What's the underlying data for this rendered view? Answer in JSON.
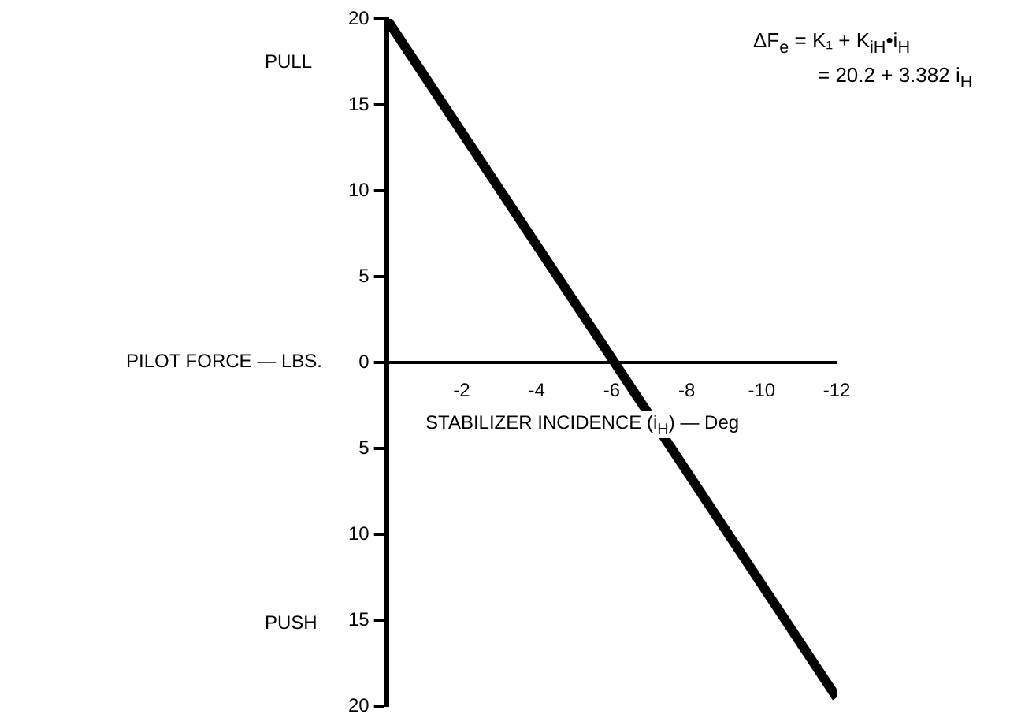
{
  "chart_data": {
    "type": "line",
    "xlabel": "STABILIZER INCIDENCE (i$_{H}$) — Deg",
    "ylabel": "PILOT FORCE — LBS.",
    "annotations": [
      "PULL",
      "PUSH",
      "ΔF$_{e}$ = K₁ + K$_{iH}$•i$_{H}$",
      "= 20.2 + 3.382 i$_{H}$"
    ],
    "series": [
      {
        "x": [
          0,
          -12
        ],
        "values": [
          20,
          -19.5
        ],
        "color": "#000000"
      }
    ],
    "xlim": [
      0,
      -12
    ],
    "xticks": [
      -2,
      -4,
      -6,
      -8,
      -10,
      -12
    ],
    "ylim": [
      -20,
      20
    ],
    "yticks": [
      {
        "value": -20,
        "label": "20"
      },
      {
        "value": -15,
        "label": "15"
      },
      {
        "value": -10,
        "label": "10"
      },
      {
        "value": -5,
        "label": "5"
      },
      0,
      5,
      10,
      15,
      20
    ],
    "grid": false,
    "legend": false,
    "marker": "none",
    "line_style": "solid"
  }
}
